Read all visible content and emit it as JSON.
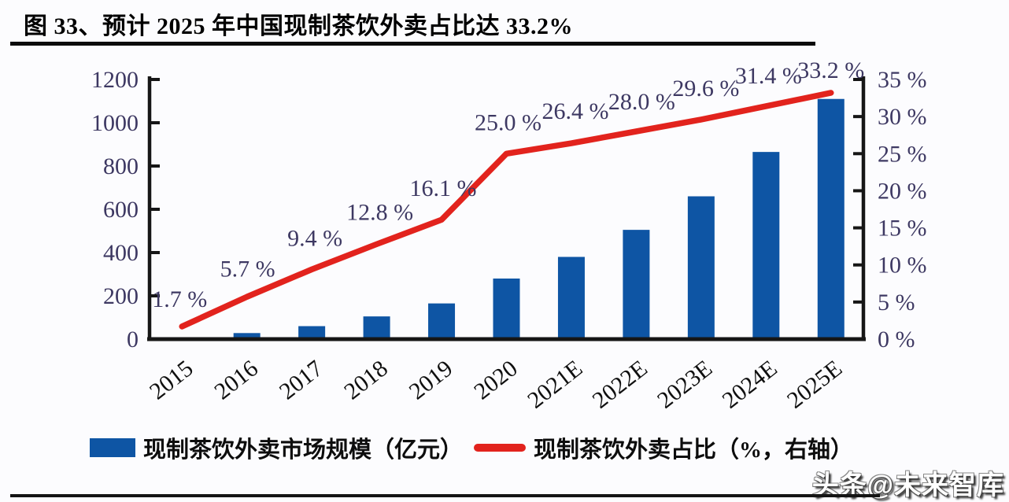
{
  "page": {
    "title": "图 33、预计 2025 年中国现制茶饮外卖占比达 33.2%",
    "watermark": "头条@未来智库"
  },
  "colors": {
    "bar": "#0e55a4",
    "line": "#e2231d",
    "axis": "#161616",
    "tick_label": "#3d3862",
    "data_label": "#3d3862",
    "category_label": "#0f0f0f"
  },
  "chart_data": {
    "type": "combo-bar-line",
    "title": "预计 2025 年中国现制茶饮外卖占比达 33.2%",
    "categories": [
      "2015",
      "2016",
      "2017",
      "2018",
      "2019",
      "2020",
      "2021E",
      "2022E",
      "2023E",
      "2024E",
      "2025E"
    ],
    "series": [
      {
        "name": "现制茶饮外卖市场规模（亿元）",
        "type": "bar",
        "axis": "left",
        "values": [
          4,
          28,
          60,
          105,
          165,
          280,
          380,
          505,
          660,
          865,
          1110
        ]
      },
      {
        "name": "现制茶饮外卖占比（%，右轴）",
        "type": "line",
        "axis": "right",
        "values": [
          1.7,
          5.7,
          9.4,
          12.8,
          16.1,
          25.0,
          26.4,
          28.0,
          29.6,
          31.4,
          33.2
        ],
        "point_labels": [
          "1.7 %",
          "5.7 %",
          "9.4 %",
          "12.8 %",
          "16.1 %",
          "25.0 %",
          "26.4 %",
          "28.0 %",
          "29.6 %",
          "31.4 %",
          "33.2 %"
        ]
      }
    ],
    "left_axis": {
      "min": 0,
      "max": 1200,
      "step": 200,
      "tick_labels": [
        "0",
        "200",
        "400",
        "600",
        "800",
        "1000",
        "1200"
      ]
    },
    "right_axis": {
      "min": 0,
      "max": 35,
      "step": 5,
      "tick_labels": [
        "0 %",
        "5 %",
        "10 %",
        "15 %",
        "20 %",
        "25 %",
        "30 %",
        "35 %"
      ]
    },
    "grid": false,
    "legend_position": "bottom"
  }
}
